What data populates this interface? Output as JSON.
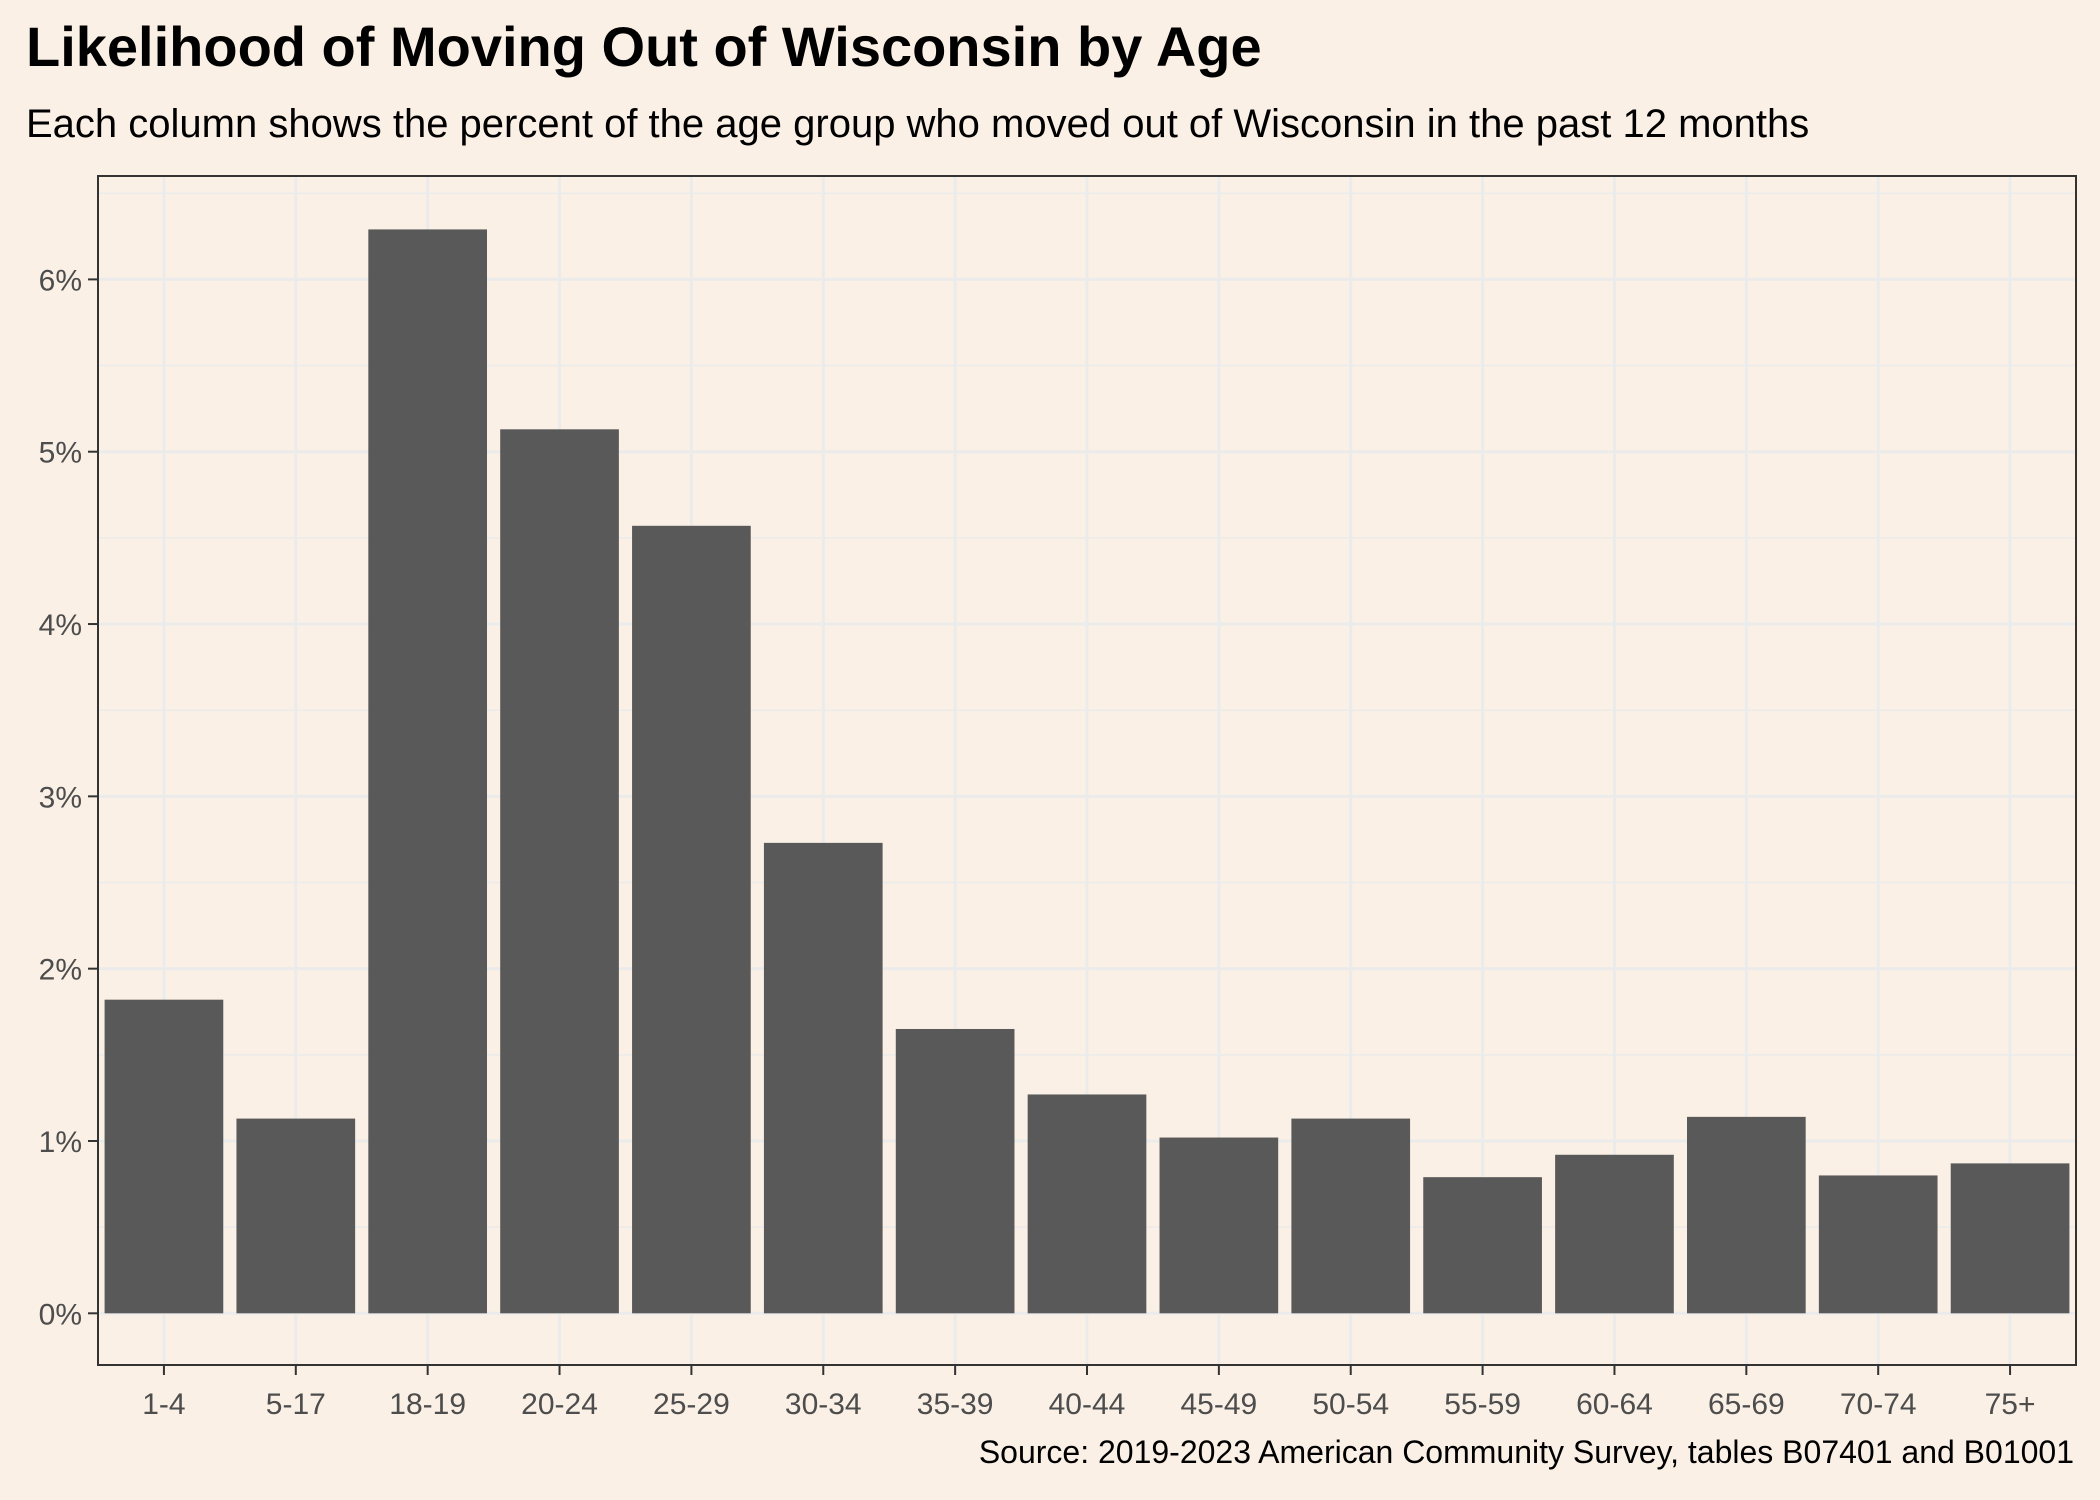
{
  "chart_data": {
    "type": "bar",
    "title": "Likelihood of Moving Out of Wisconsin by Age",
    "subtitle": "Each column shows the percent of the age group who moved out of Wisconsin in the past 12 months",
    "caption": "Source: 2019-2023 American Community Survey, tables B07401 and B01001",
    "xlabel": "",
    "ylabel": "",
    "categories": [
      "1-4",
      "5-17",
      "18-19",
      "20-24",
      "25-29",
      "30-34",
      "35-39",
      "40-44",
      "45-49",
      "50-54",
      "55-59",
      "60-64",
      "65-69",
      "70-74",
      "75+"
    ],
    "values": [
      1.82,
      1.13,
      6.29,
      5.13,
      4.57,
      2.73,
      1.65,
      1.27,
      1.02,
      1.13,
      0.79,
      0.92,
      1.14,
      0.8,
      0.87
    ],
    "value_unit": "%",
    "ylim": [
      -0.3,
      6.6
    ],
    "y_ticks": [
      0,
      1,
      2,
      3,
      4,
      5,
      6
    ],
    "y_tick_labels": [
      "0%",
      "1%",
      "2%",
      "3%",
      "4%",
      "5%",
      "6%"
    ],
    "grid": true,
    "legend": "none",
    "colors": {
      "background": "#faf0e6",
      "panel": "#faf0e6",
      "bar": "#595959",
      "grid": "#ebebeb",
      "border": "#333333",
      "tick_text": "#4d4d4d"
    }
  }
}
